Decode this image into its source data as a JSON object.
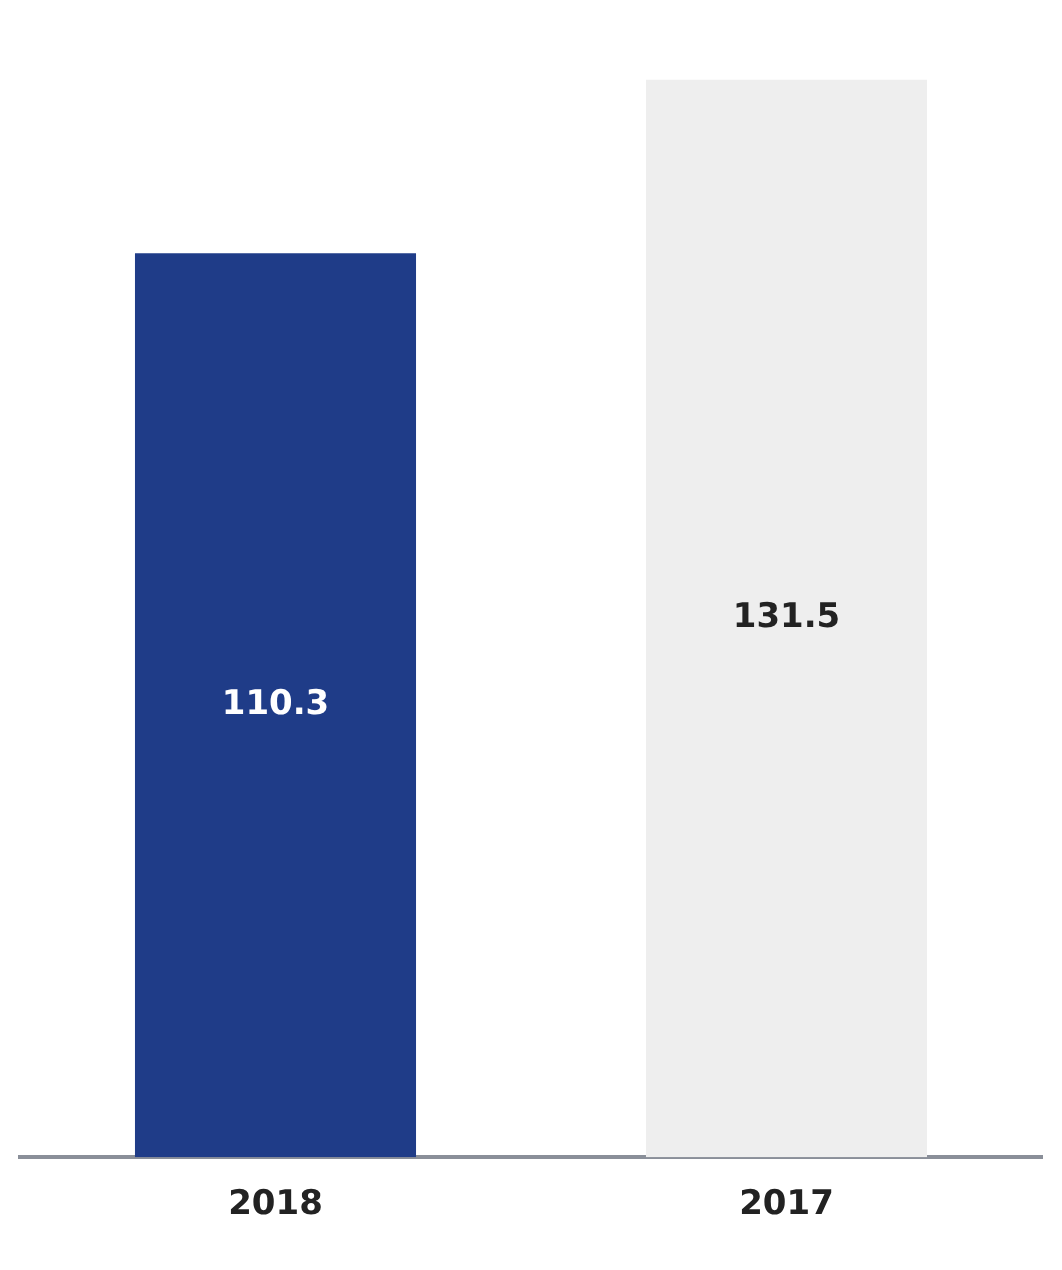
{
  "chart_data": {
    "type": "bar",
    "categories": [
      "2018",
      "2017"
    ],
    "values": [
      110.3,
      131.5
    ],
    "colors": [
      "#1f3c88",
      "#eeeeee"
    ],
    "data_labels": true,
    "grid": false,
    "legend": false
  }
}
